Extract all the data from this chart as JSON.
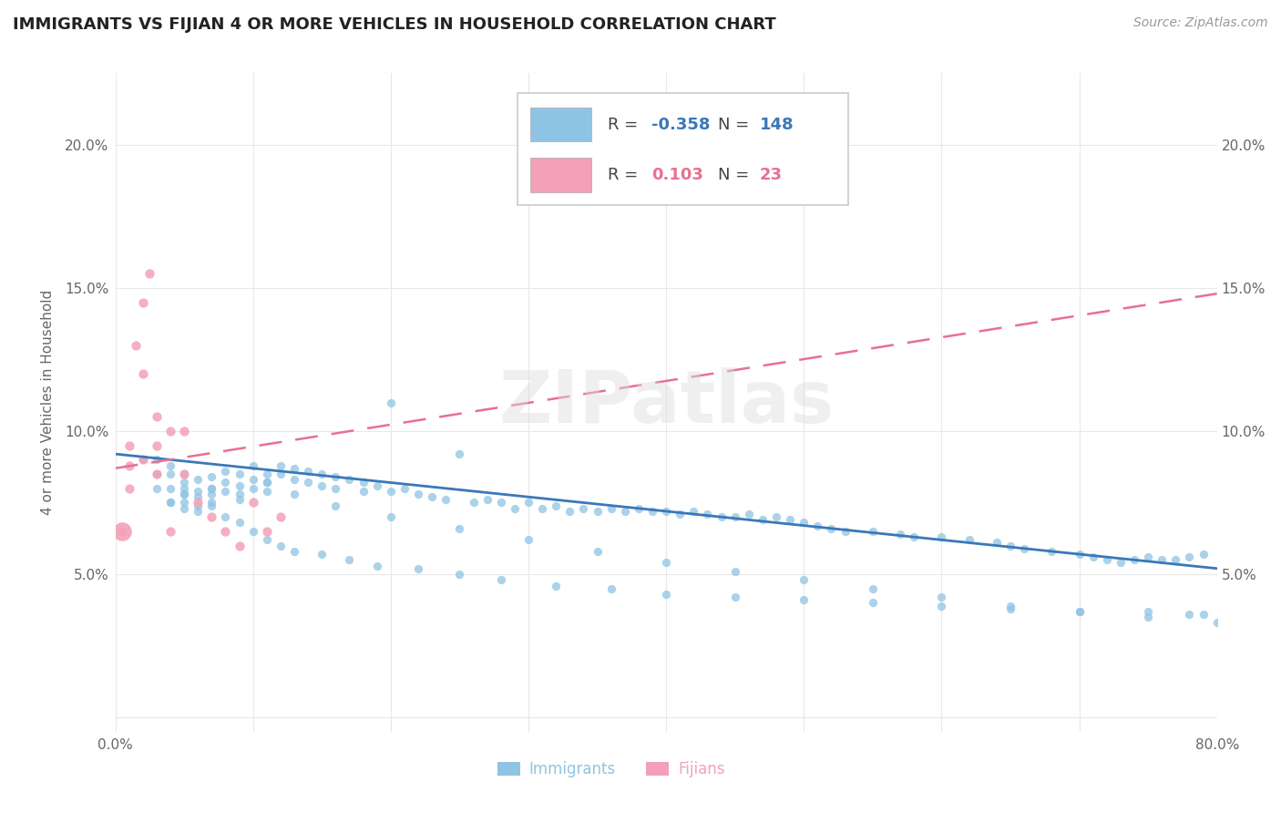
{
  "title": "IMMIGRANTS VS FIJIAN 4 OR MORE VEHICLES IN HOUSEHOLD CORRELATION CHART",
  "source_text": "Source: ZipAtlas.com",
  "ylabel": "4 or more Vehicles in Household",
  "xlim": [
    0.0,
    0.8
  ],
  "ylim": [
    -0.005,
    0.225
  ],
  "xticks": [
    0.0,
    0.1,
    0.2,
    0.3,
    0.4,
    0.5,
    0.6,
    0.7,
    0.8
  ],
  "xticklabels": [
    "0.0%",
    "",
    "",
    "",
    "",
    "",
    "",
    "",
    "80.0%"
  ],
  "yticks": [
    0.0,
    0.05,
    0.1,
    0.15,
    0.2
  ],
  "yticklabels_left": [
    "",
    "5.0%",
    "10.0%",
    "15.0%",
    "20.0%"
  ],
  "yticklabels_right": [
    "",
    "5.0%",
    "10.0%",
    "15.0%",
    "20.0%"
  ],
  "immigrant_color": "#90c4e4",
  "fijian_color": "#f4a0b8",
  "immigrant_line_color": "#3a78b8",
  "fijian_line_color": "#e87090",
  "legend_R_immigrant": "-0.358",
  "legend_N_immigrant": "148",
  "legend_R_fijian": "0.103",
  "legend_N_fijian": "23",
  "watermark": "ZIPatlas",
  "background_color": "#ffffff",
  "imm_x": [
    0.02,
    0.03,
    0.03,
    0.04,
    0.04,
    0.04,
    0.04,
    0.05,
    0.05,
    0.05,
    0.05,
    0.05,
    0.06,
    0.06,
    0.06,
    0.06,
    0.07,
    0.07,
    0.07,
    0.07,
    0.08,
    0.08,
    0.08,
    0.09,
    0.09,
    0.09,
    0.1,
    0.1,
    0.1,
    0.11,
    0.11,
    0.11,
    0.12,
    0.12,
    0.13,
    0.13,
    0.14,
    0.14,
    0.15,
    0.15,
    0.16,
    0.16,
    0.17,
    0.18,
    0.18,
    0.19,
    0.2,
    0.2,
    0.21,
    0.22,
    0.23,
    0.24,
    0.25,
    0.26,
    0.27,
    0.28,
    0.29,
    0.3,
    0.31,
    0.32,
    0.33,
    0.34,
    0.35,
    0.36,
    0.37,
    0.38,
    0.39,
    0.4,
    0.41,
    0.42,
    0.43,
    0.44,
    0.45,
    0.46,
    0.47,
    0.48,
    0.49,
    0.5,
    0.51,
    0.52,
    0.53,
    0.55,
    0.57,
    0.58,
    0.6,
    0.62,
    0.64,
    0.65,
    0.66,
    0.68,
    0.7,
    0.71,
    0.72,
    0.73,
    0.74,
    0.75,
    0.76,
    0.77,
    0.78,
    0.79,
    0.04,
    0.05,
    0.06,
    0.07,
    0.08,
    0.09,
    0.1,
    0.11,
    0.12,
    0.13,
    0.15,
    0.17,
    0.19,
    0.22,
    0.25,
    0.28,
    0.32,
    0.36,
    0.4,
    0.45,
    0.5,
    0.55,
    0.6,
    0.65,
    0.7,
    0.75,
    0.78,
    0.79,
    0.03,
    0.05,
    0.07,
    0.09,
    0.11,
    0.13,
    0.16,
    0.2,
    0.25,
    0.3,
    0.35,
    0.4,
    0.45,
    0.5,
    0.55,
    0.6,
    0.65,
    0.7,
    0.75,
    0.8
  ],
  "imm_y": [
    0.09,
    0.085,
    0.08,
    0.085,
    0.08,
    0.075,
    0.088,
    0.082,
    0.078,
    0.075,
    0.08,
    0.073,
    0.083,
    0.079,
    0.077,
    0.074,
    0.084,
    0.08,
    0.078,
    0.075,
    0.086,
    0.082,
    0.079,
    0.085,
    0.081,
    0.078,
    0.088,
    0.083,
    0.08,
    0.085,
    0.082,
    0.079,
    0.088,
    0.085,
    0.087,
    0.083,
    0.086,
    0.082,
    0.085,
    0.081,
    0.084,
    0.08,
    0.083,
    0.082,
    0.079,
    0.081,
    0.11,
    0.079,
    0.08,
    0.078,
    0.077,
    0.076,
    0.092,
    0.075,
    0.076,
    0.075,
    0.073,
    0.075,
    0.073,
    0.074,
    0.072,
    0.073,
    0.072,
    0.073,
    0.072,
    0.073,
    0.072,
    0.072,
    0.071,
    0.072,
    0.071,
    0.07,
    0.07,
    0.071,
    0.069,
    0.07,
    0.069,
    0.068,
    0.067,
    0.066,
    0.065,
    0.065,
    0.064,
    0.063,
    0.063,
    0.062,
    0.061,
    0.06,
    0.059,
    0.058,
    0.057,
    0.056,
    0.055,
    0.054,
    0.055,
    0.056,
    0.055,
    0.055,
    0.056,
    0.057,
    0.075,
    0.078,
    0.072,
    0.074,
    0.07,
    0.068,
    0.065,
    0.062,
    0.06,
    0.058,
    0.057,
    0.055,
    0.053,
    0.052,
    0.05,
    0.048,
    0.046,
    0.045,
    0.043,
    0.042,
    0.041,
    0.04,
    0.039,
    0.038,
    0.037,
    0.037,
    0.036,
    0.036,
    0.09,
    0.085,
    0.08,
    0.076,
    0.082,
    0.078,
    0.074,
    0.07,
    0.066,
    0.062,
    0.058,
    0.054,
    0.051,
    0.048,
    0.045,
    0.042,
    0.039,
    0.037,
    0.035,
    0.033
  ],
  "fij_x": [
    0.01,
    0.01,
    0.01,
    0.02,
    0.02,
    0.02,
    0.03,
    0.03,
    0.03,
    0.04,
    0.04,
    0.05,
    0.05,
    0.06,
    0.07,
    0.08,
    0.09,
    0.1,
    0.11,
    0.12,
    0.005,
    0.015,
    0.025
  ],
  "fij_y": [
    0.095,
    0.088,
    0.08,
    0.145,
    0.12,
    0.09,
    0.105,
    0.095,
    0.085,
    0.1,
    0.065,
    0.1,
    0.085,
    0.075,
    0.07,
    0.065,
    0.06,
    0.075,
    0.065,
    0.07,
    0.065,
    0.13,
    0.155
  ],
  "imm_line_x": [
    0.0,
    0.8
  ],
  "imm_line_y": [
    0.092,
    0.052
  ],
  "fij_line_x": [
    0.0,
    0.8
  ],
  "fij_line_y": [
    0.087,
    0.148
  ]
}
